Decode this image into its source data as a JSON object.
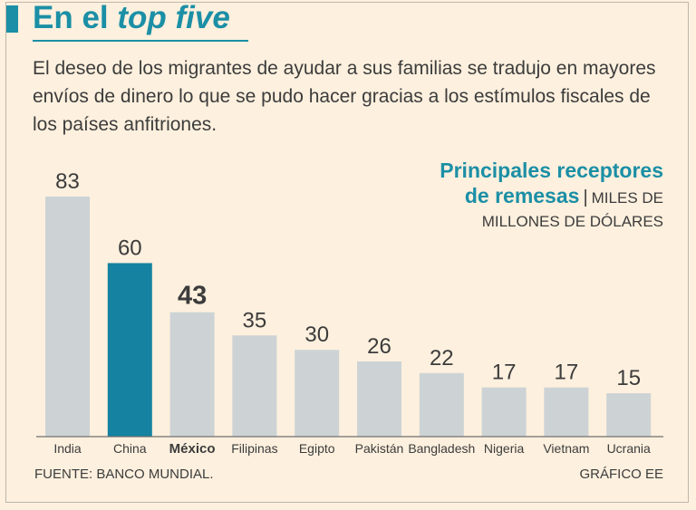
{
  "header": {
    "title_plain": "En el ",
    "title_italic": "top five",
    "intro": "El deseo de los migrantes de ayudar a sus familias se tradujo en mayores envíos de dinero lo que se pudo hacer gracias a los estímulos fiscales de los países anfitriones."
  },
  "chart_data": {
    "type": "bar",
    "title_line1": "Principales receptores",
    "title_line2": "de remesas",
    "units_line1": "MILES DE",
    "units_line2": "MILLONES DE DÓLARES",
    "categories": [
      "India",
      "China",
      "México",
      "Filipinas",
      "Egipto",
      "Pakistán",
      "Bangladesh",
      "Nigeria",
      "Vietnam",
      "Ucrania"
    ],
    "values": [
      83,
      60,
      43,
      35,
      30,
      26,
      22,
      17,
      17,
      15
    ],
    "highlight_index": 1,
    "emphasis_index": 2,
    "ylim": [
      0,
      83
    ],
    "xlabel": "",
    "ylabel": "",
    "colors": {
      "default_bar": "#cdd3d5",
      "highlight_bar": "#1482a0",
      "text": "#3c3c3c",
      "accent": "#1b8fa6"
    }
  },
  "footer": {
    "source": "FUENTE: BANCO MUNDIAL.",
    "credit": "GRÁFICO EE"
  }
}
